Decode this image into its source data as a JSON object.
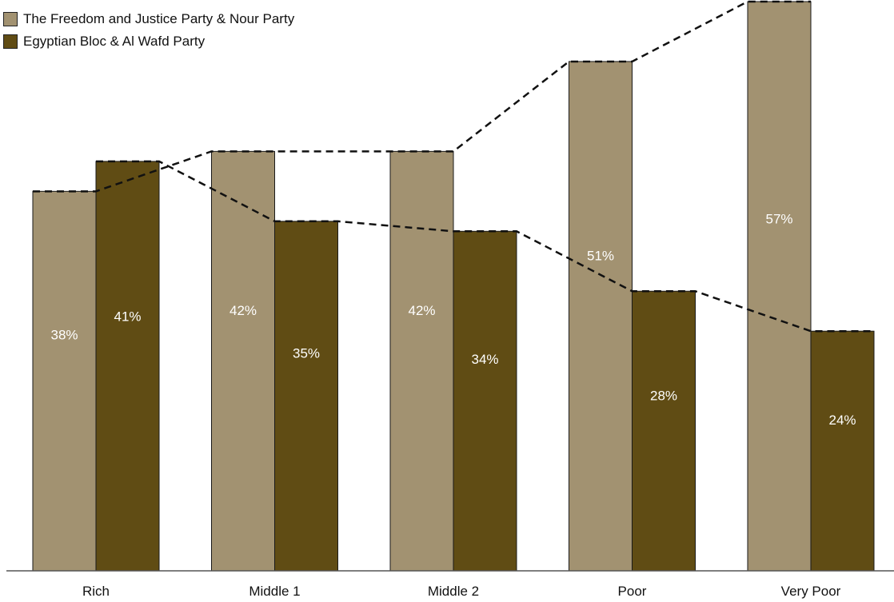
{
  "chart_data": {
    "type": "bar",
    "categories": [
      "Rich",
      "Middle 1",
      "Middle 2",
      "Poor",
      "Very Poor"
    ],
    "series": [
      {
        "name": "The Freedom and Justice Party & Nour Party",
        "values": [
          38,
          42,
          42,
          51,
          57
        ],
        "labels": [
          "38%",
          "42%",
          "42%",
          "51%",
          "57%"
        ],
        "color": "#a29271"
      },
      {
        "name": "Egyptian Bloc & Al Wafd Party",
        "values": [
          41,
          35,
          34,
          28,
          24
        ],
        "labels": [
          "41%",
          "35%",
          "34%",
          "28%",
          "24%"
        ],
        "color": "#604c14"
      }
    ],
    "ylim": [
      0,
      57
    ],
    "trend_lines": "dashed",
    "legend_position": "top-left",
    "grid": false
  }
}
